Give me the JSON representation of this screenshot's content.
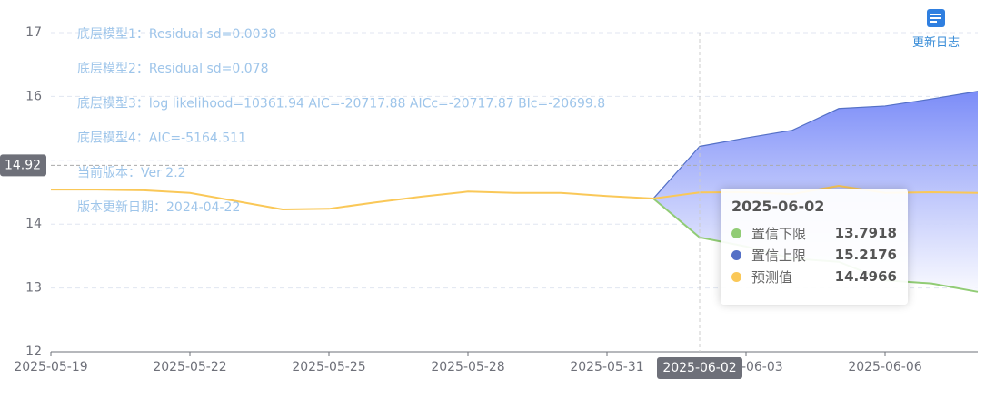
{
  "chart_data": {
    "type": "line",
    "annotations": [
      "底层模型1：Residual sd=0.0038",
      "底层模型2：Residual sd=0.078",
      "底层模型3：log likelihood=10361.94 AIC=-20717.88 AICc=-20717.87 BIc=-20699.8",
      "底层模型4：AIC=-5164.511",
      "当前版本：Ver 2.2",
      "版本更新日期：2024-04-22"
    ],
    "x": [
      "2025-05-19",
      null,
      null,
      "2025-05-22",
      null,
      null,
      "2025-05-25",
      null,
      null,
      "2025-05-28",
      null,
      null,
      "2025-05-31",
      null,
      null,
      "2025-06-03",
      null,
      null,
      "2025-06-06",
      null,
      null
    ],
    "series": [
      {
        "name": "置信下限",
        "color": "#91cc75",
        "values": [
          null,
          null,
          null,
          null,
          null,
          null,
          null,
          null,
          null,
          null,
          null,
          null,
          null,
          14.4,
          13.7918,
          13.65,
          13.46,
          13.41,
          13.12,
          13.07,
          12.94
        ]
      },
      {
        "name": "置信上限",
        "color": "#5470c6",
        "values": [
          null,
          null,
          null,
          null,
          null,
          null,
          null,
          null,
          null,
          null,
          null,
          null,
          null,
          14.4,
          15.2176,
          15.35,
          15.47,
          15.81,
          15.85,
          15.96,
          16.08
        ]
      },
      {
        "name": "预测值",
        "color": "#fac858",
        "values": [
          14.54,
          14.54,
          14.53,
          14.49,
          14.36,
          14.23,
          14.24,
          14.34,
          14.43,
          14.51,
          14.49,
          14.49,
          14.44,
          14.4,
          14.4966,
          14.5,
          14.47,
          14.6,
          14.49,
          14.5,
          14.49
        ]
      }
    ],
    "band_color": "#7b8cf8",
    "ylim": [
      12,
      17
    ],
    "yticks": [
      12,
      13,
      14,
      15,
      16,
      17
    ],
    "grid": true,
    "pointer_x": "2025-06-02",
    "pointer_y": 14.92
  },
  "toolbox": {
    "label": "更新日志"
  }
}
